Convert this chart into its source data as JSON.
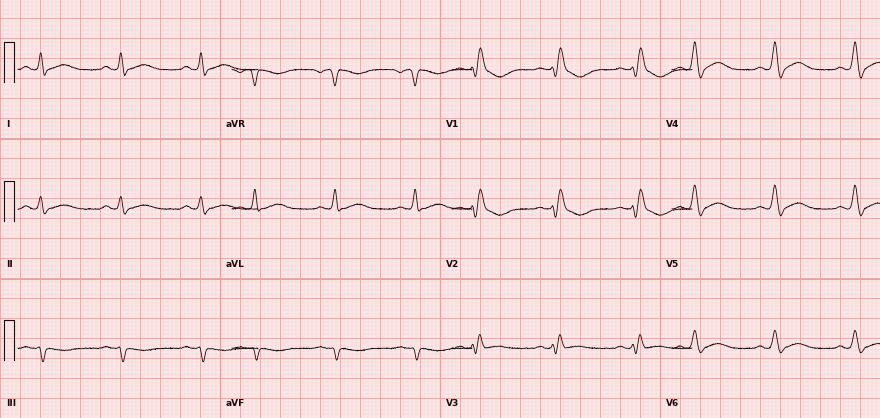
{
  "bg_color": "#fce8e8",
  "grid_major_color": "#e8a0a0",
  "grid_minor_color": "#f2c8c8",
  "ecg_color": "#1a0a0a",
  "label_color": "#1a0a0a",
  "fig_width": 8.8,
  "fig_height": 4.18,
  "dpi": 100,
  "lead_labels": [
    [
      "I",
      "aVR",
      "V1",
      "V4"
    ],
    [
      "II",
      "aVL",
      "V2",
      "V5"
    ],
    [
      "III",
      "aVF",
      "V3",
      "V6"
    ]
  ],
  "sample_rate": 250,
  "mm_per_mv": 10,
  "mm_per_s": 25,
  "minor_mm": 1,
  "major_mm": 5
}
